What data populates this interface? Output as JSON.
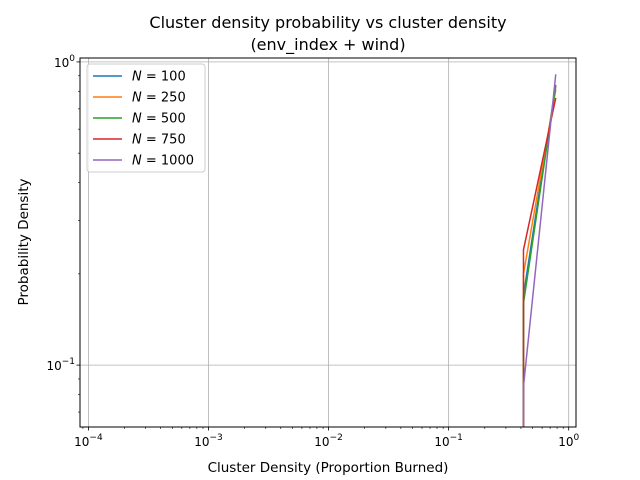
{
  "chart_data": {
    "type": "line",
    "title": "Cluster density probability vs cluster density",
    "subtitle": "(env_index + wind)",
    "xlabel": "Cluster Density (Proportion Burned)",
    "ylabel": "Probability Density",
    "xscale": "log",
    "yscale": "log",
    "xlim": [
      8.51e-05,
      1.15
    ],
    "ylim": [
      0.0625,
      1.03
    ],
    "grid": true,
    "legend_position": "top-left",
    "x_ticks": [
      {
        "value": 0.0001,
        "base": "10",
        "exp": "−4"
      },
      {
        "value": 0.001,
        "base": "10",
        "exp": "−3"
      },
      {
        "value": 0.01,
        "base": "10",
        "exp": "−2"
      },
      {
        "value": 0.1,
        "base": "10",
        "exp": "−1"
      },
      {
        "value": 1,
        "base": "10",
        "exp": "0"
      }
    ],
    "y_ticks": [
      {
        "value": 0.1,
        "base": "10",
        "exp": "−1"
      },
      {
        "value": 1,
        "base": "10",
        "exp": "0"
      }
    ],
    "series": [
      {
        "name": "N = 100",
        "legend_prefix": "N",
        "legend_value": "100",
        "color": "#1f77b4",
        "x": [
          0.42,
          0.42,
          0.78
        ],
        "y": [
          0.0625,
          0.17,
          0.84
        ]
      },
      {
        "name": "N = 250",
        "legend_prefix": "N",
        "legend_value": "250",
        "color": "#ff7f0e",
        "x": [
          0.42,
          0.42,
          0.78
        ],
        "y": [
          0.0625,
          0.2,
          0.81
        ]
      },
      {
        "name": "N = 500",
        "legend_prefix": "N",
        "legend_value": "500",
        "color": "#2ca02c",
        "x": [
          0.42,
          0.42,
          0.78
        ],
        "y": [
          0.0625,
          0.16,
          0.83
        ]
      },
      {
        "name": "N = 750",
        "legend_prefix": "N",
        "legend_value": "750",
        "color": "#d62728",
        "x": [
          0.42,
          0.42,
          0.78
        ],
        "y": [
          0.0625,
          0.24,
          0.76
        ]
      },
      {
        "name": "N = 1000",
        "legend_prefix": "N",
        "legend_value": "1000",
        "color": "#9467bd",
        "x": [
          0.42,
          0.42,
          0.78
        ],
        "y": [
          0.0625,
          0.085,
          0.91
        ]
      }
    ]
  }
}
